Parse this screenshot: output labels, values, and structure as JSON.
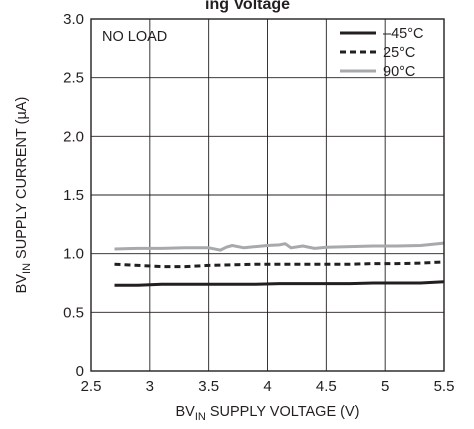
{
  "header_fragment": "ing Voltage",
  "chart_data": {
    "type": "line",
    "xlabel": {
      "prefix": "BV",
      "sub": "IN",
      "suffix": " SUPPLY VOLTAGE (V)"
    },
    "ylabel": {
      "prefix": "BV",
      "sub": "IN",
      "suffix": " SUPPLY CURRENT (µA)"
    },
    "xlim": [
      2.5,
      5.5
    ],
    "ylim": [
      0,
      3.0
    ],
    "xticks": [
      2.5,
      3,
      3.5,
      4,
      4.5,
      5,
      5.5
    ],
    "xtick_labels": [
      "2.5",
      "3",
      "3.5",
      "4",
      "4.5",
      "5",
      "5.5"
    ],
    "yticks": [
      0,
      0.5,
      1.0,
      1.5,
      2.0,
      2.5,
      3.0
    ],
    "ytick_labels": [
      "0",
      "0.5",
      "1.0",
      "1.5",
      "2.0",
      "2.5",
      "3.0"
    ],
    "grid": true,
    "legend_position": "top-right",
    "annotation": "NO LOAD",
    "series": [
      {
        "name": "–45°C",
        "style": "solid",
        "color": "#231f20",
        "x": [
          2.7,
          2.9,
          3.1,
          3.3,
          3.5,
          3.7,
          3.9,
          4.1,
          4.3,
          4.5,
          4.7,
          4.9,
          5.1,
          5.3,
          5.5
        ],
        "y": [
          0.73,
          0.73,
          0.74,
          0.74,
          0.74,
          0.74,
          0.74,
          0.745,
          0.745,
          0.745,
          0.745,
          0.75,
          0.75,
          0.75,
          0.76
        ]
      },
      {
        "name": "25°C",
        "style": "dashed",
        "color": "#231f20",
        "x": [
          2.7,
          2.9,
          3.1,
          3.3,
          3.5,
          3.7,
          3.9,
          4.1,
          4.3,
          4.5,
          4.7,
          4.9,
          5.1,
          5.3,
          5.5
        ],
        "y": [
          0.91,
          0.9,
          0.89,
          0.89,
          0.9,
          0.905,
          0.91,
          0.91,
          0.91,
          0.91,
          0.91,
          0.915,
          0.915,
          0.92,
          0.93
        ]
      },
      {
        "name": "90°C",
        "style": "solid",
        "color": "#a7a9ac",
        "x": [
          2.7,
          2.9,
          3.1,
          3.3,
          3.5,
          3.6,
          3.65,
          3.7,
          3.8,
          3.9,
          4.0,
          4.1,
          4.15,
          4.2,
          4.3,
          4.4,
          4.5,
          4.7,
          4.9,
          5.1,
          5.3,
          5.5
        ],
        "y": [
          1.04,
          1.045,
          1.045,
          1.05,
          1.05,
          1.03,
          1.055,
          1.07,
          1.05,
          1.06,
          1.07,
          1.075,
          1.085,
          1.05,
          1.065,
          1.045,
          1.055,
          1.06,
          1.065,
          1.065,
          1.07,
          1.09
        ]
      }
    ]
  }
}
